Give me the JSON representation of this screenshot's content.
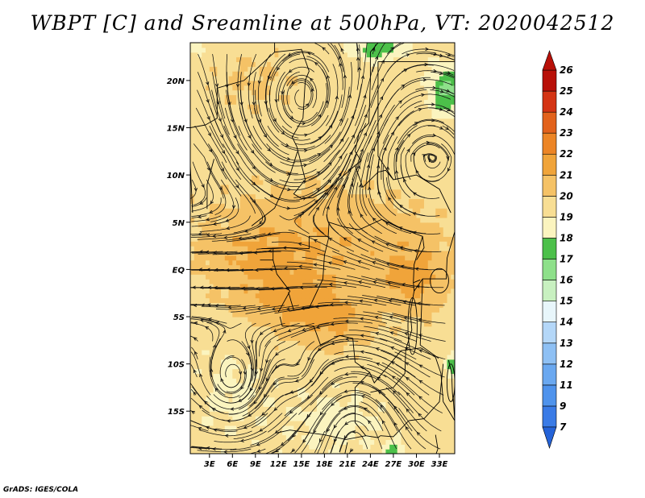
{
  "chart_data": {
    "type": "heatmap",
    "title": "WBPT [C] and Sreamline at 500hPa, VT: 2020042512",
    "variable": "Wet-bulb potential temperature",
    "units": "C",
    "level": "500hPa",
    "valid_time": "2020042512",
    "x_axis": {
      "ticks": [
        "3E",
        "6E",
        "9E",
        "12E",
        "15E",
        "18E",
        "21E",
        "24E",
        "27E",
        "30E",
        "33E"
      ],
      "values": [
        3,
        6,
        9,
        12,
        15,
        18,
        21,
        24,
        27,
        30,
        33
      ],
      "range": [
        0.5,
        35
      ]
    },
    "y_axis": {
      "ticks": [
        "20N",
        "15N",
        "10N",
        "5N",
        "EQ",
        "5S",
        "10S",
        "15S"
      ],
      "values": [
        20,
        15,
        10,
        5,
        0,
        -5,
        -10,
        -15
      ],
      "range": [
        -19.5,
        24
      ]
    },
    "colorbar": {
      "levels": [
        7,
        9,
        11,
        12,
        13,
        14,
        15,
        16,
        17,
        18,
        19,
        20,
        21,
        22,
        23,
        24,
        25,
        26
      ],
      "colors": [
        "#2563d8",
        "#3a7be6",
        "#4f93ec",
        "#6aa8f0",
        "#8ec0f4",
        "#b4d7f8",
        "#e8f6fb",
        "#c8f0c0",
        "#8ee08a",
        "#4cc04a",
        "#fbf4bf",
        "#f8de94",
        "#f5c266",
        "#f0a43a",
        "#ec8526",
        "#e2621c",
        "#d43414",
        "#b81008"
      ]
    },
    "overlay": "streamlines"
  },
  "credit": "GrADS: IGES/COLA"
}
